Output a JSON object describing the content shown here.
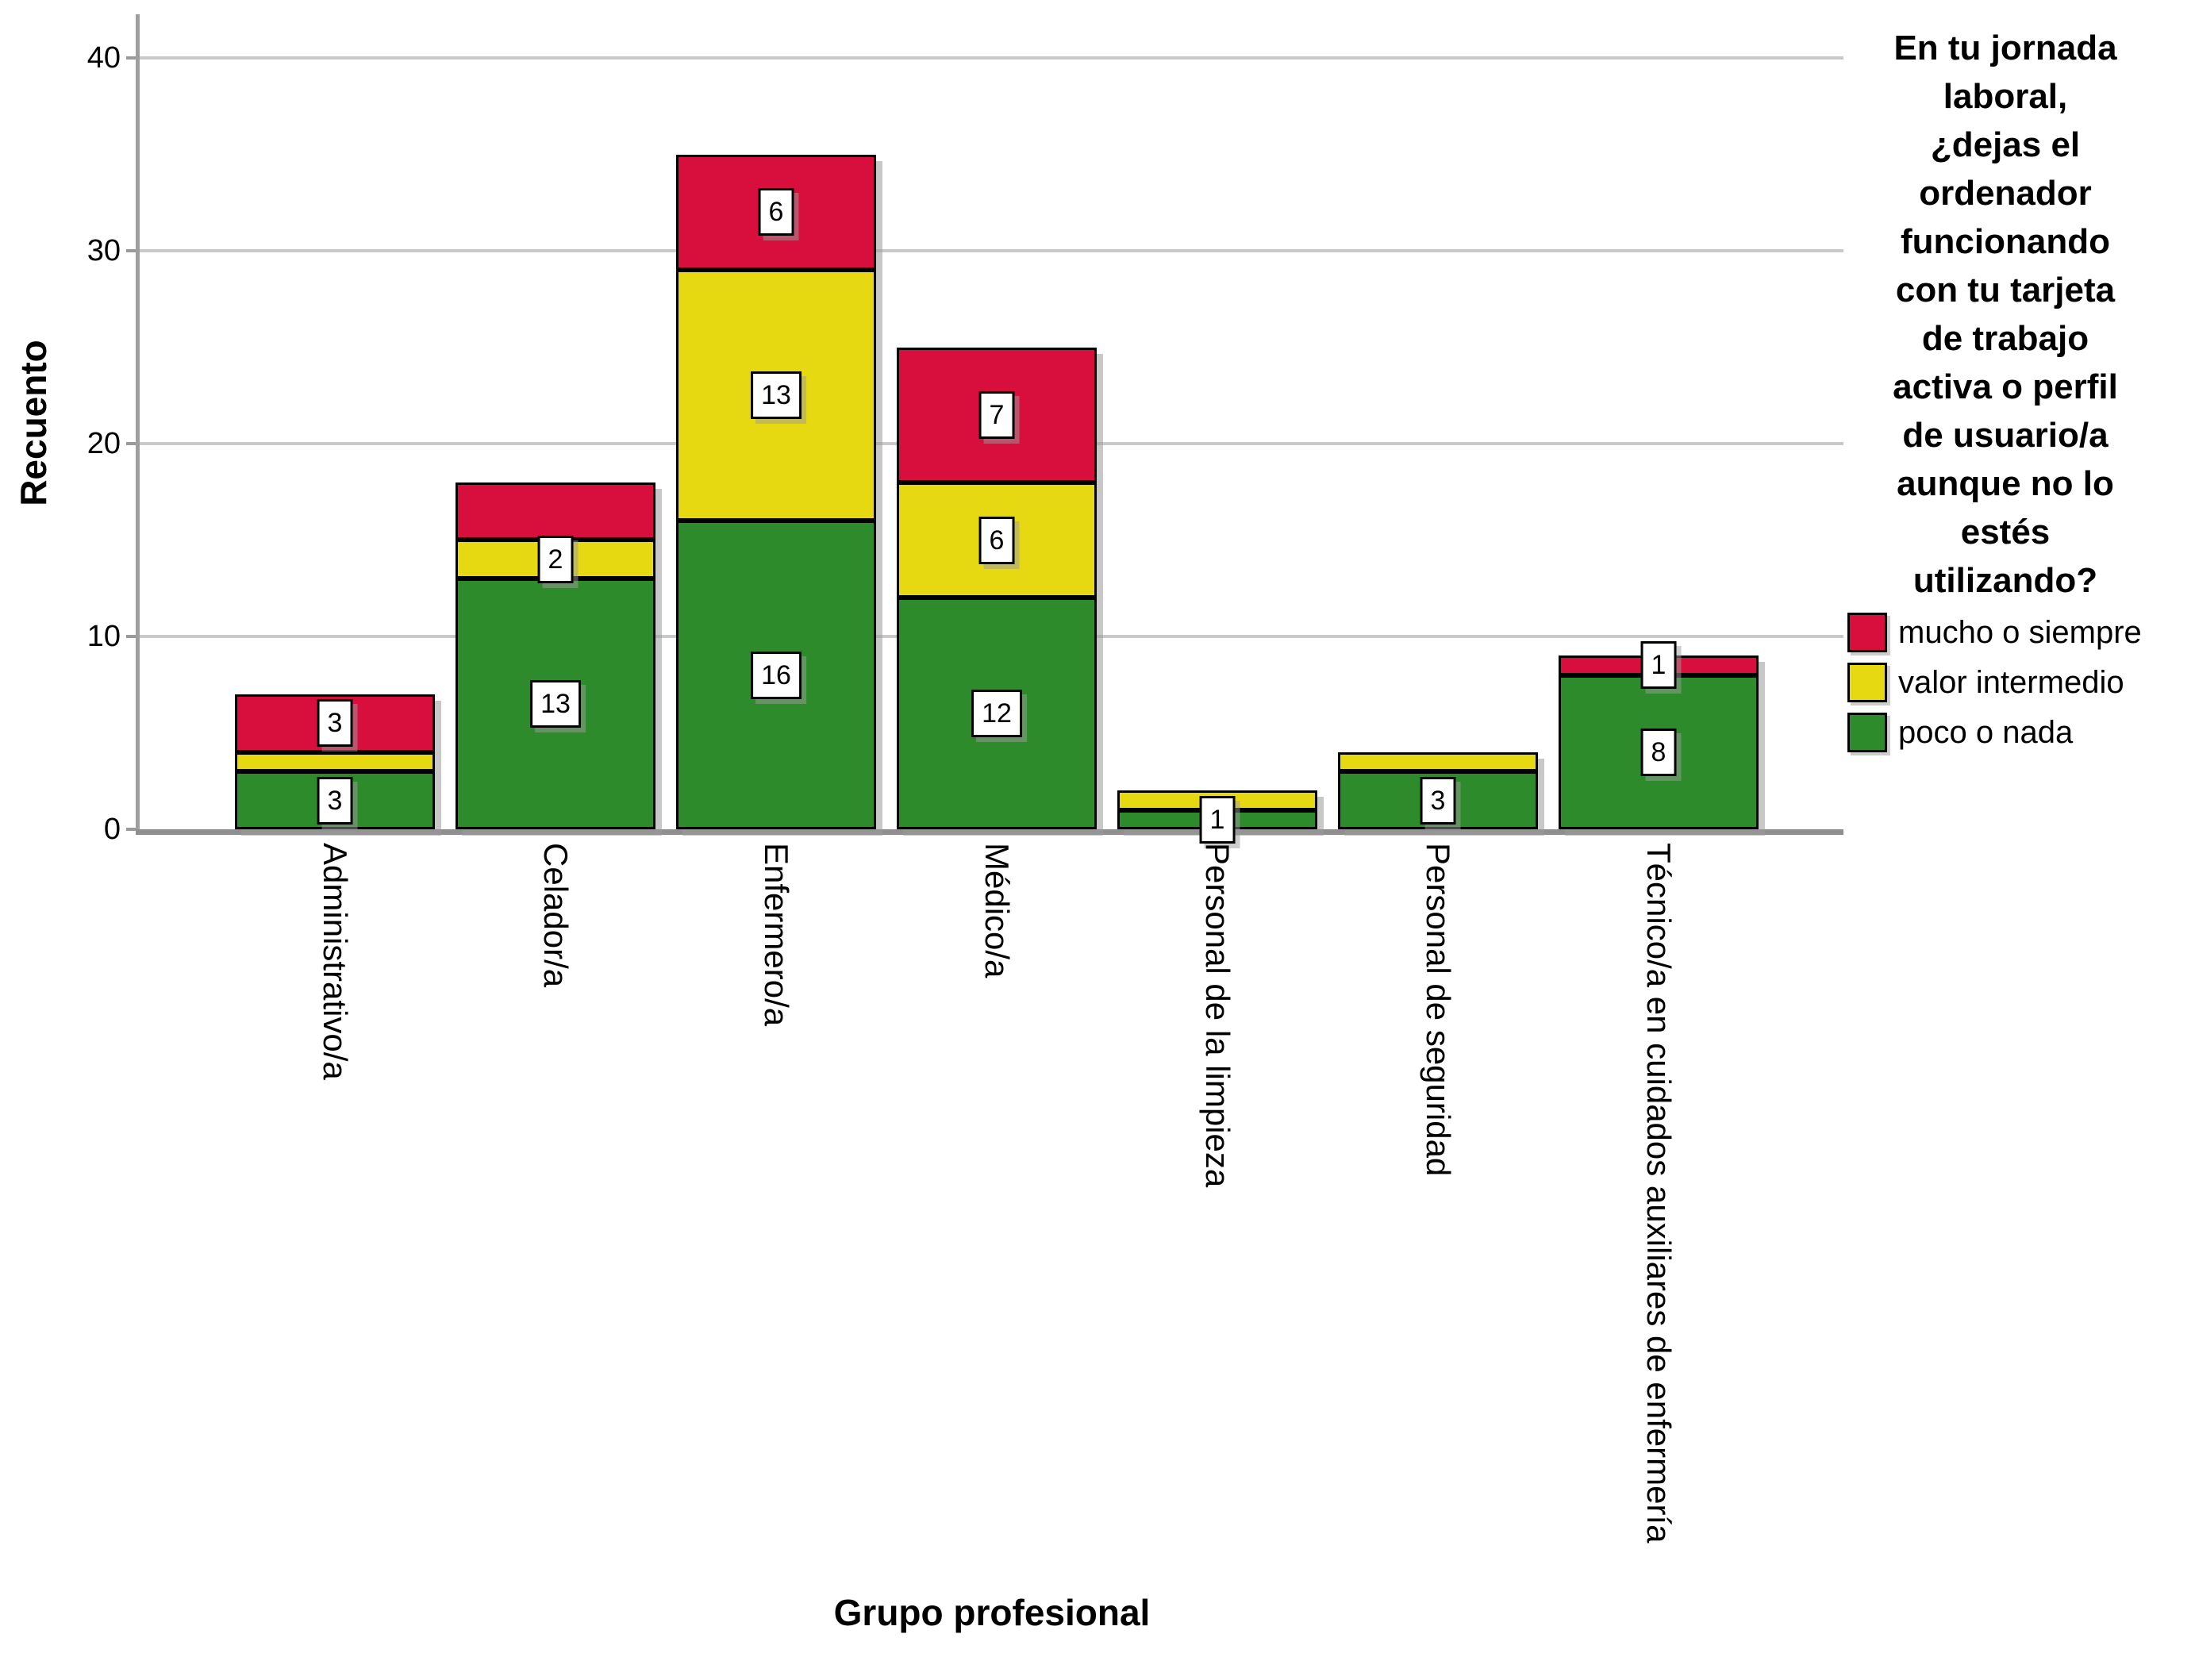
{
  "axes": {
    "y_title": "Recuento",
    "x_title": "Grupo profesional",
    "y_ticks": [
      0,
      10,
      20,
      30,
      40
    ]
  },
  "legend": {
    "title_lines": [
      "En tu jornada",
      "laboral,",
      "¿dejas el",
      "ordenador",
      "funcionando",
      "con tu tarjeta",
      "de trabajo",
      "activa o perfil",
      "de usuario/a",
      "aunque no lo",
      "estés",
      "utilizando?"
    ],
    "position": "right",
    "items": [
      {
        "label": "mucho o siempre",
        "color": "#d80e3c"
      },
      {
        "label": "valor intermedio",
        "color": "#e6d912"
      },
      {
        "label": "poco o nada",
        "color": "#2e8b2b"
      }
    ]
  },
  "chart_data": {
    "type": "bar",
    "stacked": true,
    "xlabel": "Grupo profesional",
    "ylabel": "Recuento",
    "ylim": [
      0,
      40
    ],
    "yticks": [
      0,
      10,
      20,
      30,
      40
    ],
    "grid": true,
    "categories": [
      "Administrativo/a",
      "Celador/a",
      "Enfermero/a",
      "Médico/a",
      "Personal de la limpieza",
      "Personal de seguridad",
      "Técnico/a en cuidados auxiliares de enfermería"
    ],
    "series": [
      {
        "name": "poco o nada",
        "color": "#2e8b2b",
        "values": [
          3,
          13,
          16,
          12,
          1,
          3,
          8
        ],
        "labels": [
          "3",
          "13",
          "16",
          "12",
          "1",
          "3",
          "8"
        ]
      },
      {
        "name": "valor intermedio",
        "color": "#e6d912",
        "values": [
          1,
          2,
          13,
          6,
          1,
          1,
          0
        ],
        "labels": [
          null,
          "2",
          "13",
          "6",
          null,
          null,
          null
        ]
      },
      {
        "name": "mucho o siempre",
        "color": "#d80e3c",
        "values": [
          3,
          3,
          6,
          7,
          0,
          0,
          1
        ],
        "labels": [
          "3",
          null,
          "6",
          "7",
          null,
          null,
          "1"
        ]
      }
    ]
  }
}
